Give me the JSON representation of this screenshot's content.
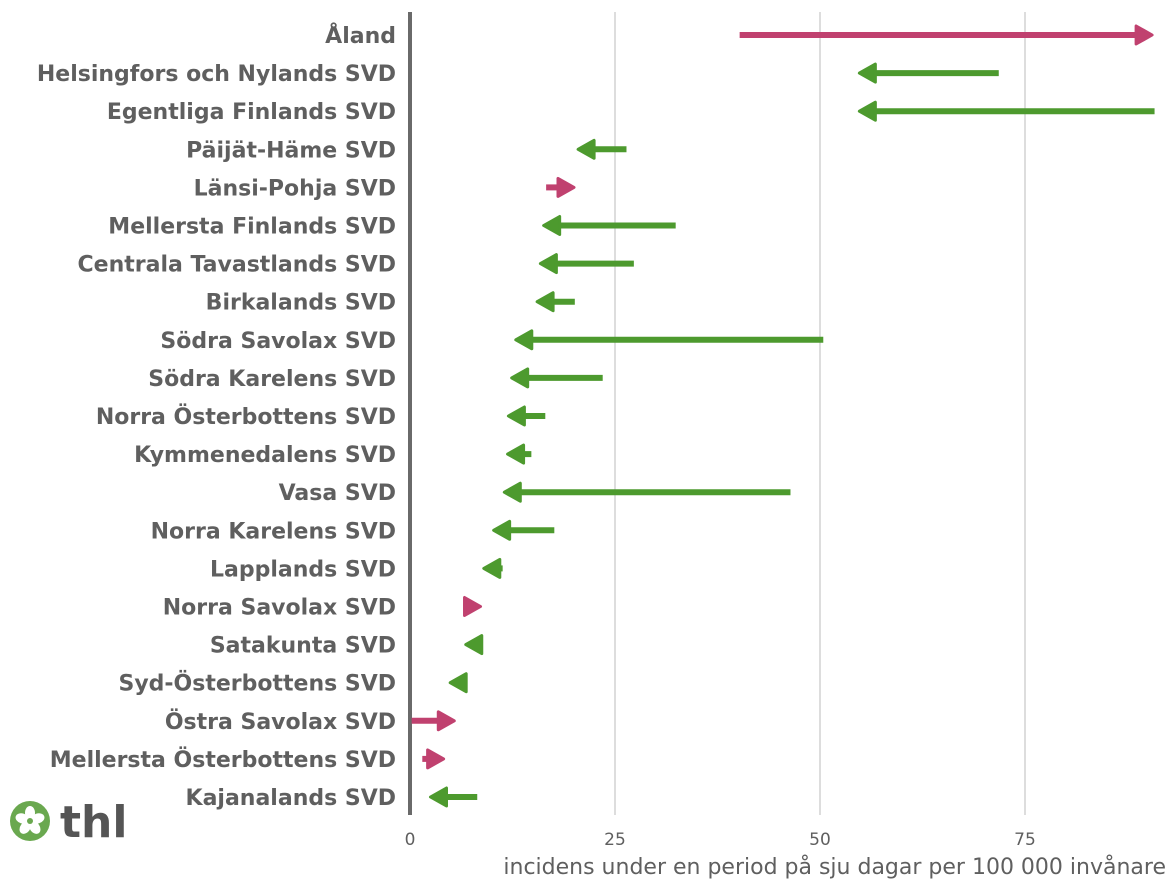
{
  "chart_data": {
    "type": "arrow",
    "xlabel": "incidens under en period på sju dagar per 100 000 invånare",
    "xlim": [
      0,
      91
    ],
    "xticks": [
      0,
      25,
      50,
      75
    ],
    "grid": true,
    "colors": {
      "increase": "#c0416f",
      "decrease": "#4d9a2e",
      "grid": "#dddddd",
      "axis": "#6a6a6a",
      "text": "#5f5f5f"
    },
    "categories": [
      "Åland",
      "Helsingfors och Nylands SVD",
      "Egentliga Finlands SVD",
      "Päijät-Häme SVD",
      "Länsi-Pohja SVD",
      "Mellersta Finlands SVD",
      "Centrala Tavastlands SVD",
      "Birkalands SVD",
      "Södra Savolax SVD",
      "Södra Karelens SVD",
      "Norra Österbottens SVD",
      "Kymmenedalens SVD",
      "Vasa SVD",
      "Norra Karelens SVD",
      "Lapplands SVD",
      "Norra Savolax SVD",
      "Satakunta SVD",
      "Syd-Österbottens SVD",
      "Östra Savolax SVD",
      "Mellersta Österbottens SVD",
      "Kajanalands SVD"
    ],
    "series": [
      {
        "values": [
          40.2,
          71.8,
          90.8,
          26.4,
          16.6,
          32.4,
          27.3,
          20.1,
          50.4,
          23.5,
          16.5,
          14.8,
          46.4,
          17.6,
          11.3,
          6.5,
          8.8,
          7.0,
          0.2,
          1.5,
          8.2
        ]
      },
      {
        "values": [
          90.5,
          54.8,
          54.8,
          20.5,
          20.0,
          16.3,
          15.9,
          15.5,
          12.9,
          12.4,
          12.0,
          11.9,
          11.5,
          10.2,
          9.0,
          8.6,
          6.8,
          4.9,
          5.4,
          4.1,
          2.5
        ]
      }
    ]
  },
  "logo": {
    "text": "thl"
  }
}
